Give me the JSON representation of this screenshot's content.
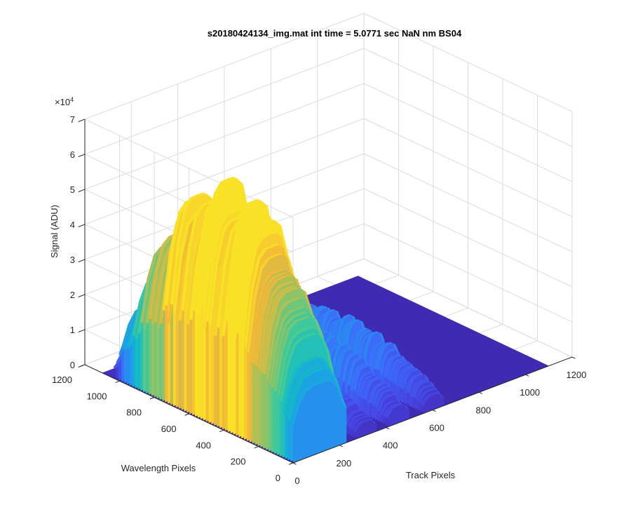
{
  "chart_data": {
    "type": "surface",
    "title": "s20180424134_img.mat int time = 5.0771 sec  NaN nm BS04",
    "xlabel": "Track Pixels",
    "ylabel": "Wavelength Pixels",
    "zlabel": "Signal (ADU)",
    "z_exponent_label": "×10",
    "z_exponent_power": "4",
    "xlim": [
      0,
      1200
    ],
    "ylim": [
      0,
      1200
    ],
    "zlim": [
      0,
      70000
    ],
    "x_ticks": [
      "0",
      "200",
      "400",
      "600",
      "800",
      "1000",
      "1200"
    ],
    "y_ticks": [
      "0",
      "200",
      "400",
      "600",
      "800",
      "1000",
      "1200"
    ],
    "z_ticks": [
      "0",
      "1",
      "2",
      "3",
      "4",
      "5",
      "6",
      "7"
    ],
    "grid": true,
    "colormap": [
      "#3e26a8",
      "#4743e2",
      "#3a70fb",
      "#1ba2e6",
      "#15bdc2",
      "#45ca95",
      "#a5c15a",
      "#f5b836",
      "#f9e225"
    ],
    "tracks": [
      {
        "x_start": 0,
        "x_end": 230,
        "peak": 60000,
        "floor": 38000
      },
      {
        "x_start": 270,
        "x_end": 360,
        "peak": 12000,
        "floor": 4000
      },
      {
        "x_start": 410,
        "x_end": 500,
        "peak": 15000,
        "floor": 5000
      },
      {
        "x_start": 560,
        "x_end": 650,
        "peak": 14000,
        "floor": 4000
      }
    ],
    "surface_extent": {
      "x_max": 1100,
      "y_max": 1100
    }
  }
}
